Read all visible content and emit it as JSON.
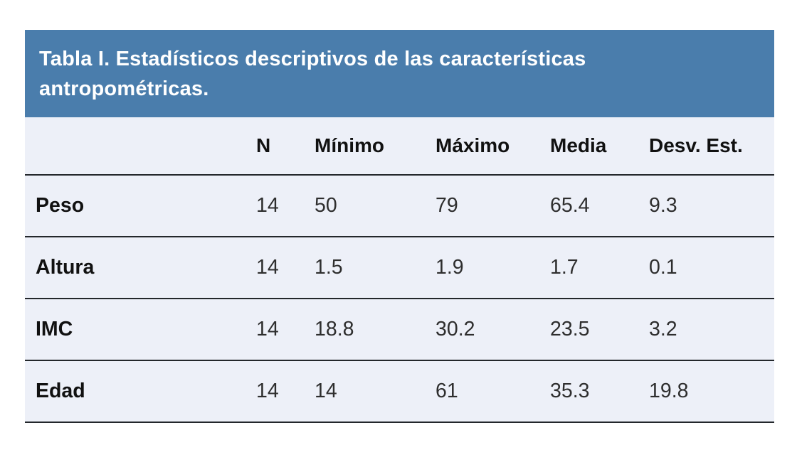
{
  "chart_data": {
    "type": "table",
    "title": "Tabla I. Estadísticos descriptivos de las características antropométricas.",
    "columns": [
      "N",
      "Mínimo",
      "Máximo",
      "Media",
      "Desv. Est."
    ],
    "rows": [
      {
        "label": "Peso",
        "values": [
          "14",
          "50",
          "79",
          "65.4",
          "9.3"
        ]
      },
      {
        "label": "Altura",
        "values": [
          "14",
          "1.5",
          "1.9",
          "1.7",
          "0.1"
        ]
      },
      {
        "label": "IMC",
        "values": [
          "14",
          "18.8",
          "30.2",
          "23.5",
          "3.2"
        ]
      },
      {
        "label": "Edad",
        "values": [
          "14",
          "14",
          "61",
          "35.3",
          "19.8"
        ]
      }
    ],
    "layout": {
      "grid": "horizontal row separators only",
      "header_band_position": "top"
    }
  },
  "colors": {
    "title_band_bg": "#4a7dac",
    "title_text": "#ffffff",
    "body_bg": "#edf0f8",
    "row_separator": "#23272b",
    "header_text": "#111111",
    "value_text": "#2e2e2e",
    "page_bg": "#ffffff"
  }
}
